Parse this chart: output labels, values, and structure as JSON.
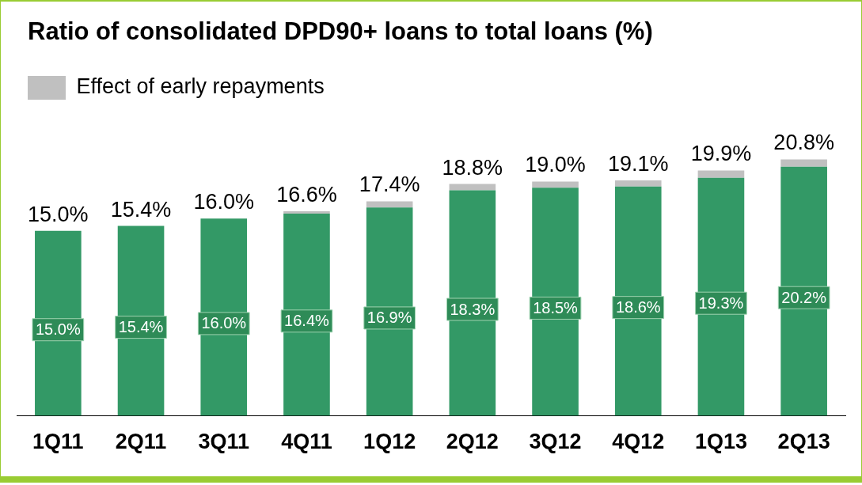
{
  "chart_data": {
    "type": "bar",
    "title": "Ratio of consolidated DPD90+ loans to total loans (%)",
    "categories": [
      "1Q11",
      "2Q11",
      "3Q11",
      "4Q11",
      "1Q12",
      "2Q12",
      "3Q12",
      "4Q12",
      "1Q13",
      "2Q13"
    ],
    "stacked": true,
    "legend": "top left",
    "grid": false,
    "series": [
      {
        "color": "#339966",
        "values": [
          15.0,
          15.4,
          16.0,
          16.4,
          16.9,
          18.3,
          18.5,
          18.6,
          19.3,
          20.2
        ],
        "value_labels": [
          "15.0%",
          "15.4%",
          "16.0%",
          "16.4%",
          "16.9%",
          "18.3%",
          "18.5%",
          "18.6%",
          "19.3%",
          "20.2%"
        ]
      },
      {
        "name": "Effect of early repayments",
        "color": "#c0c0c0",
        "values": [
          0,
          0,
          0,
          0.2,
          0.5,
          0.5,
          0.5,
          0.5,
          0.6,
          0.6
        ]
      }
    ],
    "totals": [
      "15.0%",
      "15.4%",
      "16.0%",
      "16.6%",
      "17.4%",
      "18.8%",
      "19.0%",
      "19.1%",
      "19.9%",
      "20.8%"
    ]
  }
}
